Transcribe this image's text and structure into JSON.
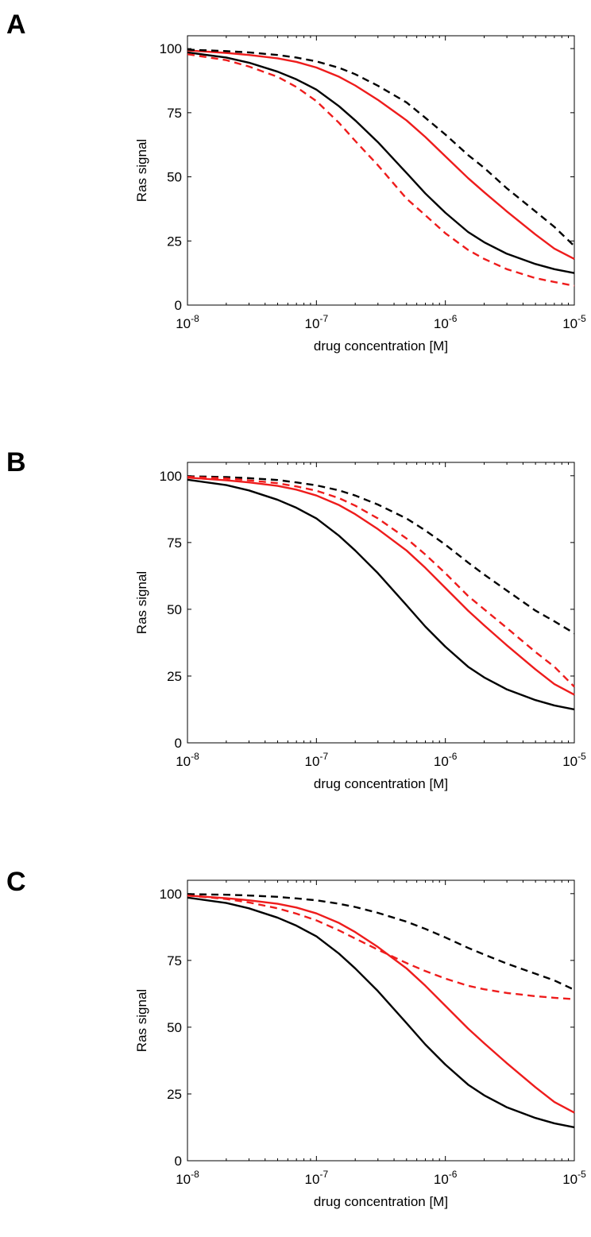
{
  "colors": {
    "black": "#000000",
    "red": "#ee1c1c"
  },
  "chart_data": [
    {
      "type": "line",
      "panel": "A",
      "xlabel": "drug concentration [M]",
      "ylabel": "Ras signal",
      "xscale": "log",
      "xlim": [
        1e-08,
        1e-05
      ],
      "ylim": [
        0,
        105
      ],
      "yticks": [
        0,
        25,
        50,
        75,
        100
      ],
      "xticks": [
        {
          "value": 1e-08,
          "base": "10",
          "exp": "-8"
        },
        {
          "value": 1e-07,
          "base": "10",
          "exp": "-7"
        },
        {
          "value": 1e-06,
          "base": "10",
          "exp": "-6"
        },
        {
          "value": 1e-05,
          "base": "10",
          "exp": "-5"
        }
      ],
      "x": [
        1e-08,
        2e-08,
        3e-08,
        5e-08,
        7e-08,
        1e-07,
        1.5e-07,
        2e-07,
        3e-07,
        5e-07,
        7e-07,
        1e-06,
        1.5e-06,
        2e-06,
        3e-06,
        5e-06,
        7e-06,
        1e-05
      ],
      "series": [
        {
          "color": "black",
          "dash": false,
          "values": [
            98.5,
            96.5,
            94.5,
            91,
            88,
            84,
            77.5,
            72,
            63.5,
            51.5,
            43.5,
            36,
            28.5,
            24.5,
            20,
            16,
            14,
            12.5
          ]
        },
        {
          "color": "red",
          "dash": false,
          "values": [
            99.3,
            98.3,
            97.5,
            96.2,
            94.8,
            92.6,
            89,
            85.6,
            80,
            72,
            65.5,
            58,
            49.5,
            44,
            36.5,
            27.5,
            22,
            18
          ]
        },
        {
          "color": "black",
          "dash": true,
          "values": [
            99.6,
            99,
            98.5,
            97.5,
            96.5,
            95,
            92.5,
            90,
            85.5,
            79,
            73,
            66.5,
            58.5,
            53.5,
            45.5,
            36.5,
            30.5,
            23
          ]
        },
        {
          "color": "red",
          "dash": true,
          "values": [
            97.8,
            95.5,
            93,
            89,
            85,
            79.5,
            71,
            64,
            54.5,
            41.5,
            35,
            28,
            21.5,
            18,
            14,
            10.5,
            9,
            7.5
          ]
        }
      ]
    },
    {
      "type": "line",
      "panel": "B",
      "xlabel": "drug concentration [M]",
      "ylabel": "Ras signal",
      "xscale": "log",
      "xlim": [
        1e-08,
        1e-05
      ],
      "ylim": [
        0,
        105
      ],
      "yticks": [
        0,
        25,
        50,
        75,
        100
      ],
      "xticks": [
        {
          "value": 1e-08,
          "base": "10",
          "exp": "-8"
        },
        {
          "value": 1e-07,
          "base": "10",
          "exp": "-7"
        },
        {
          "value": 1e-06,
          "base": "10",
          "exp": "-6"
        },
        {
          "value": 1e-05,
          "base": "10",
          "exp": "-5"
        }
      ],
      "x": [
        1e-08,
        2e-08,
        3e-08,
        5e-08,
        7e-08,
        1e-07,
        1.5e-07,
        2e-07,
        3e-07,
        5e-07,
        7e-07,
        1e-06,
        1.5e-06,
        2e-06,
        3e-06,
        5e-06,
        7e-06,
        1e-05
      ],
      "series": [
        {
          "color": "black",
          "dash": false,
          "values": [
            98.5,
            96.5,
            94.5,
            91,
            88,
            84,
            77.5,
            72,
            63.5,
            51.5,
            43.5,
            36,
            28.5,
            24.5,
            20,
            16,
            14,
            12.5
          ]
        },
        {
          "color": "red",
          "dash": false,
          "values": [
            99.3,
            98.3,
            97.5,
            96.2,
            94.8,
            92.6,
            89,
            85.6,
            80,
            72,
            65.5,
            58,
            49.5,
            44,
            36.5,
            27.5,
            22,
            18
          ]
        },
        {
          "color": "black",
          "dash": true,
          "values": [
            99.8,
            99.5,
            99.1,
            98.4,
            97.5,
            96.4,
            94.5,
            92.6,
            89.2,
            84,
            79.5,
            74.2,
            67.5,
            63,
            57,
            49.5,
            45.5,
            41
          ]
        },
        {
          "color": "red",
          "dash": true,
          "values": [
            99.6,
            99,
            98.3,
            97.2,
            96,
            94.4,
            91.6,
            88.8,
            84,
            76.5,
            70.5,
            63.5,
            55,
            50,
            43,
            34,
            28.5,
            21
          ]
        }
      ]
    },
    {
      "type": "line",
      "panel": "C",
      "xlabel": "drug concentration [M]",
      "ylabel": "Ras signal",
      "xscale": "log",
      "xlim": [
        1e-08,
        1e-05
      ],
      "ylim": [
        0,
        105
      ],
      "yticks": [
        0,
        25,
        50,
        75,
        100
      ],
      "xticks": [
        {
          "value": 1e-08,
          "base": "10",
          "exp": "-8"
        },
        {
          "value": 1e-07,
          "base": "10",
          "exp": "-7"
        },
        {
          "value": 1e-06,
          "base": "10",
          "exp": "-6"
        },
        {
          "value": 1e-05,
          "base": "10",
          "exp": "-5"
        }
      ],
      "x": [
        1e-08,
        2e-08,
        3e-08,
        5e-08,
        7e-08,
        1e-07,
        1.5e-07,
        2e-07,
        3e-07,
        5e-07,
        7e-07,
        1e-06,
        1.5e-06,
        2e-06,
        3e-06,
        5e-06,
        7e-06,
        1e-05
      ],
      "series": [
        {
          "color": "black",
          "dash": false,
          "values": [
            98.5,
            96.5,
            94.5,
            91,
            88,
            84,
            77.5,
            72,
            63.5,
            51.5,
            43.5,
            36,
            28.5,
            24.5,
            20,
            16,
            14,
            12.5
          ]
        },
        {
          "color": "red",
          "dash": false,
          "values": [
            99.3,
            98.3,
            97.5,
            96.2,
            94.8,
            92.6,
            89,
            85.6,
            80,
            72,
            65.5,
            58,
            49.5,
            44,
            36.5,
            27.5,
            22,
            18
          ]
        },
        {
          "color": "black",
          "dash": true,
          "values": [
            99.8,
            99.6,
            99.3,
            98.8,
            98.2,
            97.5,
            96.2,
            95,
            92.8,
            89.5,
            86.8,
            83.6,
            79.7,
            77.2,
            73.8,
            70,
            67.5,
            64
          ]
        },
        {
          "color": "red",
          "dash": true,
          "values": [
            99.3,
            98,
            96.7,
            94.5,
            92.5,
            90,
            86.2,
            83.2,
            79,
            74,
            71,
            68.2,
            65.5,
            64.2,
            62.8,
            61.6,
            61,
            60.5
          ]
        }
      ]
    }
  ]
}
